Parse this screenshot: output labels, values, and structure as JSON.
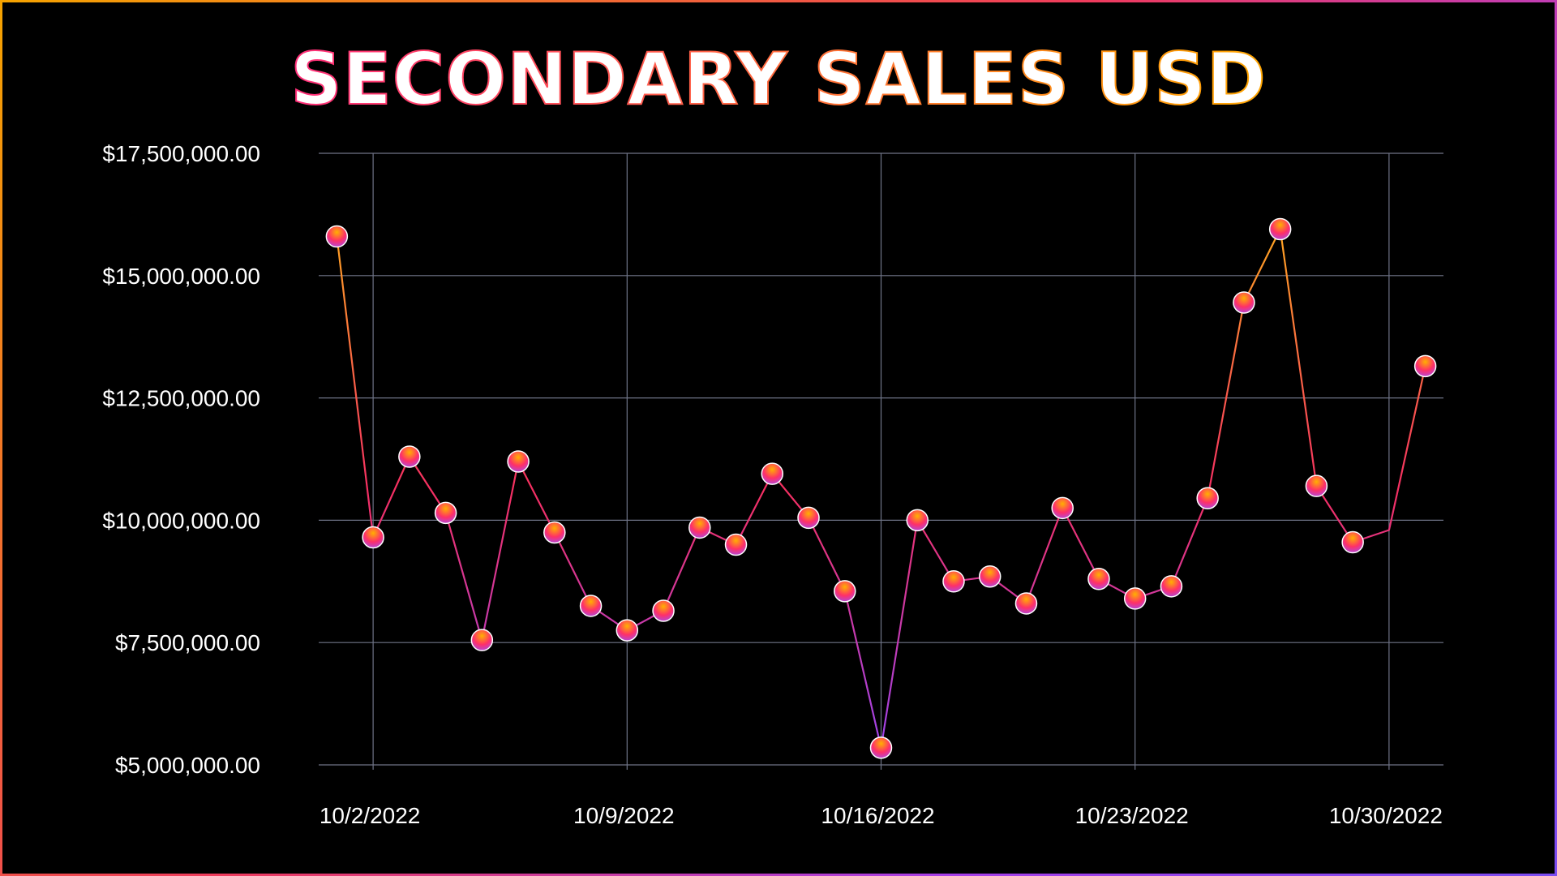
{
  "chart_data": {
    "type": "line",
    "title": "SECONDARY SALES USD",
    "xlabel": "",
    "ylabel": "",
    "x_tick_labels": [
      "10/2/2022",
      "10/9/2022",
      "10/16/2022",
      "10/23/2022",
      "10/30/2022"
    ],
    "y_tick_labels": [
      "$5,000,000.00",
      "$7,500,000.00",
      "$10,000,000.00",
      "$12,500,000.00",
      "$15,000,000.00",
      "$17,500,000.00"
    ],
    "y_ticks": [
      5000000,
      7500000,
      10000000,
      12500000,
      15000000,
      17500000
    ],
    "ylim": [
      5000000,
      17500000
    ],
    "xlim": [
      "2022-10-01",
      "2022-10-31"
    ],
    "grid": true,
    "legend": "none",
    "series": [
      {
        "x": [
          "2022-10-01",
          "2022-10-02",
          "2022-10-03",
          "2022-10-04",
          "2022-10-05",
          "2022-10-06",
          "2022-10-07",
          "2022-10-08",
          "2022-10-09",
          "2022-10-10",
          "2022-10-11",
          "2022-10-12",
          "2022-10-13",
          "2022-10-14",
          "2022-10-15",
          "2022-10-16",
          "2022-10-17",
          "2022-10-18",
          "2022-10-19",
          "2022-10-20",
          "2022-10-21",
          "2022-10-22",
          "2022-10-23",
          "2022-10-24",
          "2022-10-25",
          "2022-10-26",
          "2022-10-27",
          "2022-10-28",
          "2022-10-29",
          "2022-10-30",
          "2022-10-31"
        ],
        "values": [
          15800000,
          9650000,
          11300000,
          10150000,
          7550000,
          11200000,
          9750000,
          8250000,
          7750000,
          8150000,
          9850000,
          9500000,
          10950000,
          10050000,
          8550000,
          5350000,
          10000000,
          8750000,
          8850000,
          8300000,
          10250000,
          8800000,
          8400000,
          8650000,
          10450000,
          14450000,
          15950000,
          10700000,
          9550000,
          9800000,
          13150000
        ],
        "markers": [
          true,
          true,
          true,
          true,
          true,
          true,
          true,
          true,
          true,
          true,
          true,
          true,
          true,
          true,
          true,
          true,
          true,
          true,
          true,
          true,
          true,
          true,
          true,
          true,
          true,
          true,
          true,
          true,
          true,
          false,
          true
        ]
      }
    ]
  }
}
